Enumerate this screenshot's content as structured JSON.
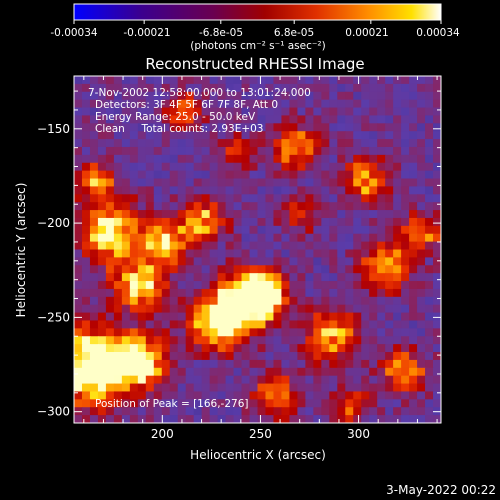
{
  "colorbar": {
    "ticks": [
      "-0.00034",
      "-0.00021",
      "-6.8e-05",
      "6.8e-05",
      "0.00021",
      "0.00034"
    ],
    "tick_values": [
      -0.00034,
      -0.00021,
      -6.8e-05,
      6.8e-05,
      0.00021,
      0.00034
    ],
    "range": [
      -0.00034,
      0.00034
    ],
    "unit_label": "(photons cm⁻² s⁻¹ asec⁻²)",
    "colors": [
      "#0000ff",
      "#3a0080",
      "#7a0040",
      "#b00000",
      "#e83000",
      "#ff9000",
      "#ffe000",
      "#ffffff"
    ]
  },
  "chart_data": {
    "type": "heatmap",
    "title": "Reconstructed RHESSI Image",
    "xlabel": "Heliocentric X (arcsec)",
    "ylabel": "Heliocentric Y (arcsec)",
    "xlim": [
      155,
      342
    ],
    "ylim": [
      -306,
      -122
    ],
    "x_ticks": [
      200,
      250,
      300
    ],
    "y_ticks": [
      -150,
      -200,
      -250,
      -300
    ],
    "annotations": [
      "7-Nov-2002 12:58:00.000 to 13:01:24.000",
      "Detectors: 3F 4F 5F 6F 7F 8F, Att 0",
      "Energy Range: 25.0 - 50.0 keV",
      "Clean     Total counts: 2.93E+03"
    ],
    "peak_label": "Position of Peak = [166,-276]",
    "peak_position": [
      166,
      -276
    ],
    "grid": false
  },
  "footer": {
    "timestamp": "3-May-2022 00:22"
  }
}
